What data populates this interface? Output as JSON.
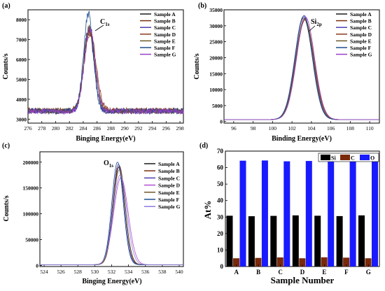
{
  "chart_data": [
    {
      "panel_label": "(a)",
      "type": "line",
      "xlabel": "Binging Energy(eV)",
      "ylabel": "Counts/s",
      "xlim": [
        276,
        298.5
      ],
      "ylim": [
        2800,
        8500
      ],
      "xticks": [
        276,
        278,
        280,
        282,
        284,
        286,
        288,
        290,
        292,
        294,
        296,
        298
      ],
      "yticks": [
        3000,
        4000,
        5000,
        6000,
        7000,
        8000
      ],
      "legend_position": "top-right",
      "peak_annotation": {
        "text": "C",
        "sub": "1s"
      },
      "series": [
        {
          "name": "Sample A",
          "color": "#1a1a1a",
          "baseline": 3400,
          "peak_x": 284.8,
          "peak_y": 7500,
          "sigma": 0.75
        },
        {
          "name": "Sample B",
          "color": "#7a2e0e",
          "baseline": 3420,
          "peak_x": 284.9,
          "peak_y": 7400,
          "sigma": 0.8
        },
        {
          "name": "Sample C",
          "color": "#4b3fb0",
          "baseline": 3380,
          "peak_x": 284.85,
          "peak_y": 7600,
          "sigma": 0.75
        },
        {
          "name": "Sample D",
          "color": "#8a3a1e",
          "baseline": 3450,
          "peak_x": 285.0,
          "peak_y": 7350,
          "sigma": 0.85
        },
        {
          "name": "Sample E",
          "color": "#6d5a2a",
          "baseline": 3400,
          "peak_x": 284.9,
          "peak_y": 7550,
          "sigma": 0.8
        },
        {
          "name": "Sample F",
          "color": "#1f4f8f",
          "baseline": 3420,
          "peak_x": 284.75,
          "peak_y": 8300,
          "sigma": 0.7
        },
        {
          "name": "Sample G",
          "color": "#9a3fc9",
          "baseline": 3400,
          "peak_x": 284.95,
          "peak_y": 7450,
          "sigma": 0.8
        }
      ]
    },
    {
      "panel_label": "(b)",
      "type": "line",
      "xlabel": "Binding Energy(eV)",
      "ylabel": "Counts/s",
      "xlim": [
        95,
        111
      ],
      "ylim": [
        -500,
        35000
      ],
      "xticks": [
        96,
        98,
        100,
        102,
        104,
        106,
        108,
        110
      ],
      "yticks": [
        0,
        5000,
        10000,
        15000,
        20000,
        25000,
        30000,
        35000
      ],
      "legend_position": "top-right",
      "peak_annotation": {
        "text": "Si",
        "sub": "2p"
      },
      "series": [
        {
          "name": "Sample A",
          "color": "#1a1a1a",
          "baseline": 600,
          "peak_x": 103.2,
          "peak_y": 32500,
          "sigma": 0.9
        },
        {
          "name": "Sample B",
          "color": "#7a2e0e",
          "baseline": 600,
          "peak_x": 103.3,
          "peak_y": 32000,
          "sigma": 0.92
        },
        {
          "name": "Sample C",
          "color": "#4b3fb0",
          "baseline": 600,
          "peak_x": 103.25,
          "peak_y": 33200,
          "sigma": 0.9
        },
        {
          "name": "Sample D",
          "color": "#8a3a1e",
          "baseline": 600,
          "peak_x": 103.35,
          "peak_y": 31800,
          "sigma": 0.93
        },
        {
          "name": "Sample E",
          "color": "#6d5a2a",
          "baseline": 600,
          "peak_x": 103.3,
          "peak_y": 32300,
          "sigma": 0.91
        },
        {
          "name": "Sample F",
          "color": "#1f4f8f",
          "baseline": 600,
          "peak_x": 103.2,
          "peak_y": 33000,
          "sigma": 0.9
        },
        {
          "name": "Sample G",
          "color": "#9a3fc9",
          "baseline": 600,
          "peak_x": 103.4,
          "peak_y": 32700,
          "sigma": 0.92
        }
      ]
    },
    {
      "panel_label": "(c)",
      "type": "line",
      "xlabel": "Binging Energy(eV)",
      "ylabel": "Counts/s",
      "xlim": [
        523.5,
        540.5
      ],
      "ylim": [
        -2000,
        220000
      ],
      "xticks": [
        524,
        526,
        528,
        530,
        532,
        534,
        536,
        538,
        540
      ],
      "yticks": [
        0,
        50000,
        100000,
        150000,
        200000
      ],
      "legend_position": "top-right",
      "peak_annotation": {
        "text": "O",
        "sub": "1s"
      },
      "series": [
        {
          "name": "Sample A",
          "color": "#1a1a1a",
          "baseline": 1500,
          "peak_x": 532.8,
          "peak_y": 190000,
          "sigma": 0.7
        },
        {
          "name": "Sample B",
          "color": "#7a2e0e",
          "baseline": 1500,
          "peak_x": 532.9,
          "peak_y": 193000,
          "sigma": 0.7
        },
        {
          "name": "Sample C",
          "color": "#4b3fb0",
          "baseline": 1500,
          "peak_x": 532.8,
          "peak_y": 196000,
          "sigma": 0.68
        },
        {
          "name": "Sample D",
          "color": "#b34fd0",
          "baseline": 1500,
          "peak_x": 533.1,
          "peak_y": 170000,
          "sigma": 0.85
        },
        {
          "name": "Sample E",
          "color": "#6d5a2a",
          "baseline": 1500,
          "peak_x": 532.9,
          "peak_y": 185000,
          "sigma": 0.72
        },
        {
          "name": "Sample F",
          "color": "#1f4f8f",
          "baseline": 1500,
          "peak_x": 532.7,
          "peak_y": 200000,
          "sigma": 0.68
        },
        {
          "name": "Sample G",
          "color": "#8f7ae0",
          "baseline": 1500,
          "peak_x": 533.0,
          "peak_y": 175000,
          "sigma": 0.8
        }
      ]
    },
    {
      "panel_label": "(d)",
      "type": "bar",
      "xlabel": "Sample Number",
      "ylabel": "At%",
      "ylim": [
        0,
        70
      ],
      "yticks": [
        0,
        10,
        20,
        30,
        40,
        50,
        60,
        70
      ],
      "categories": [
        "A",
        "B",
        "C",
        "D",
        "E",
        "F",
        "G"
      ],
      "legend_position": "top-right",
      "series": [
        {
          "name": "Si",
          "color": "#000000",
          "values": [
            30.8,
            30.5,
            30.7,
            31.0,
            30.8,
            30.6,
            31.0
          ]
        },
        {
          "name": "C",
          "color": "#7a2a0a",
          "values": [
            5.0,
            5.2,
            5.5,
            5.0,
            5.6,
            5.4,
            5.0
          ]
        },
        {
          "name": "O",
          "color": "#1a1aff",
          "values": [
            64.2,
            64.3,
            63.8,
            64.0,
            63.6,
            64.0,
            64.0
          ]
        }
      ]
    }
  ]
}
